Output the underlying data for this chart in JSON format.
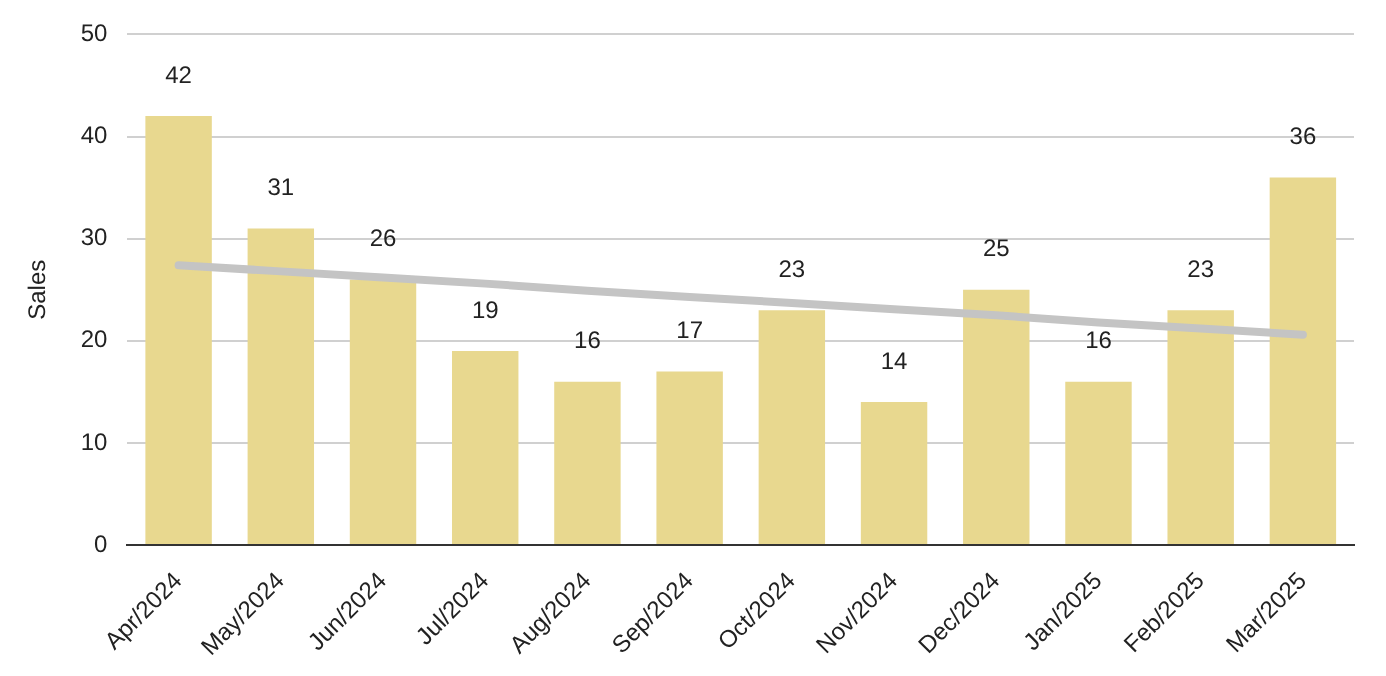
{
  "chart_data": {
    "type": "bar",
    "ylabel": "Sales",
    "categories": [
      "Apr/2024",
      "May/2024",
      "Jun/2024",
      "Jul/2024",
      "Aug/2024",
      "Sep/2024",
      "Oct/2024",
      "Nov/2024",
      "Dec/2024",
      "Jan/2025",
      "Feb/2025",
      "Mar/2025"
    ],
    "series": [
      {
        "color": "#e8d88f",
        "values": [
          42,
          31,
          26,
          19,
          16,
          17,
          23,
          14,
          25,
          16,
          23,
          36
        ],
        "data_labels": true
      },
      {
        "type": "line",
        "color": "#c4c4c4",
        "values": [
          27.4,
          26.8,
          26.2,
          25.6,
          24.9,
          24.3,
          23.7,
          23.1,
          22.5,
          21.8,
          21.2,
          20.6
        ]
      }
    ],
    "ylim": [
      0,
      50
    ],
    "yticks": [
      0,
      10,
      20,
      30,
      40,
      50
    ],
    "grid": "y",
    "legend": false,
    "marker": "none"
  }
}
